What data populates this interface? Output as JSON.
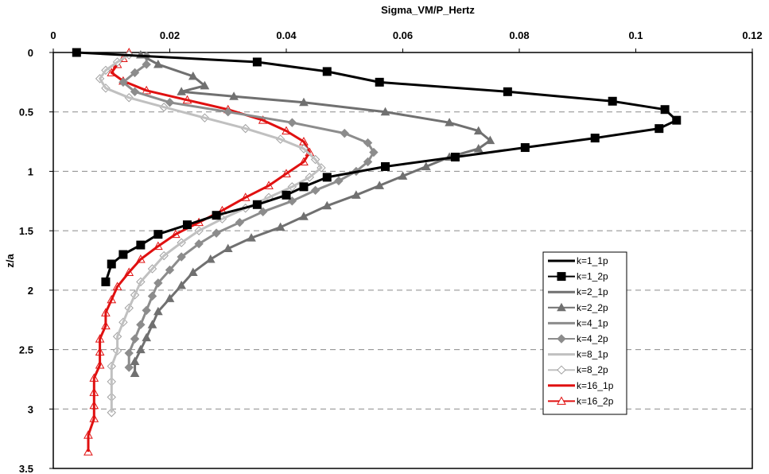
{
  "chart_data": {
    "type": "line",
    "title": "",
    "xlabel": "Sigma_VM/P_Hertz",
    "ylabel": "z/a",
    "xlim": [
      0,
      0.12
    ],
    "ylim": [
      0,
      3.5
    ],
    "y_inverted": true,
    "x_axis_position": "top",
    "x_ticks": [
      "0",
      "0.02",
      "0.04",
      "0.06",
      "0.08",
      "0.1",
      "0.12"
    ],
    "y_ticks": [
      "0",
      "0.5",
      "1",
      "1.5",
      "2",
      "2.5",
      "3",
      "3.5"
    ],
    "grid": "horizontal dashed",
    "legend_position": "right",
    "series": [
      {
        "name": "k=1_1p",
        "color": "#000000",
        "marker": "none",
        "x": [
          0.004,
          0.035,
          0.047,
          0.056,
          0.078,
          0.096,
          0.105,
          0.107,
          0.104,
          0.093,
          0.081,
          0.069,
          0.057,
          0.047,
          0.043,
          0.04,
          0.035,
          0.028,
          0.023,
          0.018,
          0.015,
          0.012,
          0.01,
          0.009
        ],
        "y": [
          0.0,
          0.08,
          0.16,
          0.25,
          0.33,
          0.41,
          0.48,
          0.57,
          0.64,
          0.72,
          0.8,
          0.88,
          0.96,
          1.05,
          1.13,
          1.2,
          1.28,
          1.37,
          1.45,
          1.53,
          1.62,
          1.7,
          1.78,
          1.93
        ]
      },
      {
        "name": "k=1_2p",
        "color": "#000000",
        "marker": "square",
        "x": [
          0.004,
          0.035,
          0.047,
          0.056,
          0.078,
          0.096,
          0.105,
          0.107,
          0.104,
          0.093,
          0.081,
          0.069,
          0.057,
          0.047,
          0.043,
          0.04,
          0.035,
          0.028,
          0.023,
          0.018,
          0.015,
          0.012,
          0.01,
          0.009
        ],
        "y": [
          0.0,
          0.08,
          0.16,
          0.25,
          0.33,
          0.41,
          0.48,
          0.57,
          0.64,
          0.72,
          0.8,
          0.88,
          0.96,
          1.05,
          1.13,
          1.2,
          1.28,
          1.37,
          1.45,
          1.53,
          1.62,
          1.7,
          1.78,
          1.93
        ]
      },
      {
        "name": "k=2_1p",
        "color": "#707070",
        "marker": "none",
        "x": [
          0.015,
          0.018,
          0.024,
          0.026,
          0.022,
          0.031,
          0.043,
          0.057,
          0.068,
          0.073,
          0.075,
          0.073,
          0.068,
          0.064,
          0.06,
          0.056,
          0.052,
          0.047,
          0.043,
          0.039,
          0.034,
          0.03,
          0.027,
          0.024,
          0.022,
          0.02,
          0.018,
          0.017,
          0.016,
          0.015,
          0.014,
          0.014
        ],
        "y": [
          0.02,
          0.1,
          0.2,
          0.28,
          0.33,
          0.37,
          0.42,
          0.5,
          0.59,
          0.66,
          0.74,
          0.81,
          0.88,
          0.96,
          1.04,
          1.12,
          1.2,
          1.29,
          1.38,
          1.47,
          1.56,
          1.65,
          1.74,
          1.85,
          1.96,
          2.07,
          2.18,
          2.29,
          2.4,
          2.5,
          2.6,
          2.7
        ]
      },
      {
        "name": "k=2_2p",
        "color": "#707070",
        "marker": "triangle",
        "x": [
          0.015,
          0.018,
          0.024,
          0.026,
          0.022,
          0.031,
          0.043,
          0.057,
          0.068,
          0.073,
          0.075,
          0.073,
          0.068,
          0.064,
          0.06,
          0.056,
          0.052,
          0.047,
          0.043,
          0.039,
          0.034,
          0.03,
          0.027,
          0.024,
          0.022,
          0.02,
          0.018,
          0.017,
          0.016,
          0.015,
          0.014,
          0.014
        ],
        "y": [
          0.02,
          0.1,
          0.2,
          0.28,
          0.33,
          0.37,
          0.42,
          0.5,
          0.59,
          0.66,
          0.74,
          0.81,
          0.88,
          0.96,
          1.04,
          1.12,
          1.2,
          1.29,
          1.38,
          1.47,
          1.56,
          1.65,
          1.74,
          1.85,
          1.96,
          2.07,
          2.18,
          2.29,
          2.4,
          2.5,
          2.6,
          2.7
        ]
      },
      {
        "name": "k=4_1p",
        "color": "#8c8c8c",
        "marker": "none",
        "x": [
          0.016,
          0.016,
          0.014,
          0.012,
          0.014,
          0.02,
          0.03,
          0.041,
          0.05,
          0.054,
          0.055,
          0.054,
          0.052,
          0.049,
          0.045,
          0.041,
          0.036,
          0.032,
          0.028,
          0.025,
          0.022,
          0.02,
          0.018,
          0.017,
          0.016,
          0.015,
          0.014,
          0.013,
          0.013
        ],
        "y": [
          0.03,
          0.1,
          0.17,
          0.25,
          0.33,
          0.42,
          0.5,
          0.59,
          0.68,
          0.76,
          0.84,
          0.92,
          1.0,
          1.08,
          1.16,
          1.25,
          1.34,
          1.43,
          1.52,
          1.61,
          1.72,
          1.83,
          1.94,
          2.05,
          2.17,
          2.29,
          2.41,
          2.53,
          2.65
        ]
      },
      {
        "name": "k=4_2p",
        "color": "#8c8c8c",
        "marker": "diamond",
        "x": [
          0.016,
          0.016,
          0.014,
          0.012,
          0.014,
          0.02,
          0.03,
          0.041,
          0.05,
          0.054,
          0.055,
          0.054,
          0.052,
          0.049,
          0.045,
          0.041,
          0.036,
          0.032,
          0.028,
          0.025,
          0.022,
          0.02,
          0.018,
          0.017,
          0.016,
          0.015,
          0.014,
          0.013,
          0.013
        ],
        "y": [
          0.03,
          0.1,
          0.17,
          0.25,
          0.33,
          0.42,
          0.5,
          0.59,
          0.68,
          0.76,
          0.84,
          0.92,
          1.0,
          1.08,
          1.16,
          1.25,
          1.34,
          1.43,
          1.52,
          1.61,
          1.72,
          1.83,
          1.94,
          2.05,
          2.17,
          2.29,
          2.41,
          2.53,
          2.65
        ]
      },
      {
        "name": "k=8_1p",
        "color": "#c0c0c0",
        "marker": "none",
        "x": [
          0.013,
          0.011,
          0.009,
          0.008,
          0.009,
          0.013,
          0.019,
          0.026,
          0.033,
          0.039,
          0.043,
          0.045,
          0.046,
          0.044,
          0.041,
          0.037,
          0.033,
          0.029,
          0.025,
          0.022,
          0.019,
          0.017,
          0.015,
          0.014,
          0.013,
          0.012,
          0.011,
          0.011,
          0.01,
          0.01,
          0.01,
          0.01
        ],
        "y": [
          0.02,
          0.08,
          0.15,
          0.22,
          0.3,
          0.38,
          0.46,
          0.55,
          0.64,
          0.73,
          0.81,
          0.9,
          0.97,
          1.05,
          1.13,
          1.22,
          1.31,
          1.4,
          1.5,
          1.6,
          1.71,
          1.82,
          1.93,
          2.04,
          2.15,
          2.27,
          2.39,
          2.51,
          2.64,
          2.77,
          2.9,
          3.03
        ]
      },
      {
        "name": "k=8_2p",
        "color": "#c0c0c0",
        "marker": "open-diamond",
        "x": [
          0.013,
          0.011,
          0.009,
          0.008,
          0.009,
          0.013,
          0.019,
          0.026,
          0.033,
          0.039,
          0.043,
          0.045,
          0.046,
          0.044,
          0.041,
          0.037,
          0.033,
          0.029,
          0.025,
          0.022,
          0.019,
          0.017,
          0.015,
          0.014,
          0.013,
          0.012,
          0.011,
          0.011,
          0.01,
          0.01,
          0.01,
          0.01
        ],
        "y": [
          0.02,
          0.08,
          0.15,
          0.22,
          0.3,
          0.38,
          0.46,
          0.55,
          0.64,
          0.73,
          0.81,
          0.9,
          0.97,
          1.05,
          1.13,
          1.22,
          1.31,
          1.4,
          1.5,
          1.6,
          1.71,
          1.82,
          1.93,
          2.04,
          2.15,
          2.27,
          2.39,
          2.51,
          2.64,
          2.77,
          2.9,
          3.03
        ]
      },
      {
        "name": "k=16_1p",
        "color": "#e01010",
        "marker": "none",
        "x": [
          0.013,
          0.012,
          0.011,
          0.01,
          0.012,
          0.016,
          0.023,
          0.03,
          0.036,
          0.04,
          0.043,
          0.044,
          0.043,
          0.04,
          0.037,
          0.033,
          0.029,
          0.025,
          0.021,
          0.018,
          0.015,
          0.013,
          0.011,
          0.01,
          0.009,
          0.009,
          0.008,
          0.008,
          0.008,
          0.007,
          0.007,
          0.007,
          0.007,
          0.006,
          0.006
        ],
        "y": [
          0.0,
          0.05,
          0.1,
          0.17,
          0.24,
          0.32,
          0.4,
          0.48,
          0.57,
          0.66,
          0.75,
          0.84,
          0.92,
          1.02,
          1.12,
          1.22,
          1.33,
          1.43,
          1.53,
          1.63,
          1.74,
          1.85,
          1.97,
          2.08,
          2.19,
          2.3,
          2.41,
          2.52,
          2.63,
          2.74,
          2.86,
          2.97,
          3.08,
          3.22,
          3.36
        ]
      },
      {
        "name": "k=16_2p",
        "color": "#e01010",
        "marker": "open-triangle",
        "x": [
          0.013,
          0.012,
          0.011,
          0.01,
          0.012,
          0.016,
          0.023,
          0.03,
          0.036,
          0.04,
          0.043,
          0.044,
          0.043,
          0.04,
          0.037,
          0.033,
          0.029,
          0.025,
          0.021,
          0.018,
          0.015,
          0.013,
          0.011,
          0.01,
          0.009,
          0.009,
          0.008,
          0.008,
          0.008,
          0.007,
          0.007,
          0.007,
          0.007,
          0.006,
          0.006
        ],
        "y": [
          0.0,
          0.05,
          0.1,
          0.17,
          0.24,
          0.32,
          0.4,
          0.48,
          0.57,
          0.66,
          0.75,
          0.84,
          0.92,
          1.02,
          1.12,
          1.22,
          1.33,
          1.43,
          1.53,
          1.63,
          1.74,
          1.85,
          1.97,
          2.08,
          2.19,
          2.3,
          2.41,
          2.52,
          2.63,
          2.74,
          2.86,
          2.97,
          3.08,
          3.22,
          3.36
        ]
      }
    ]
  }
}
